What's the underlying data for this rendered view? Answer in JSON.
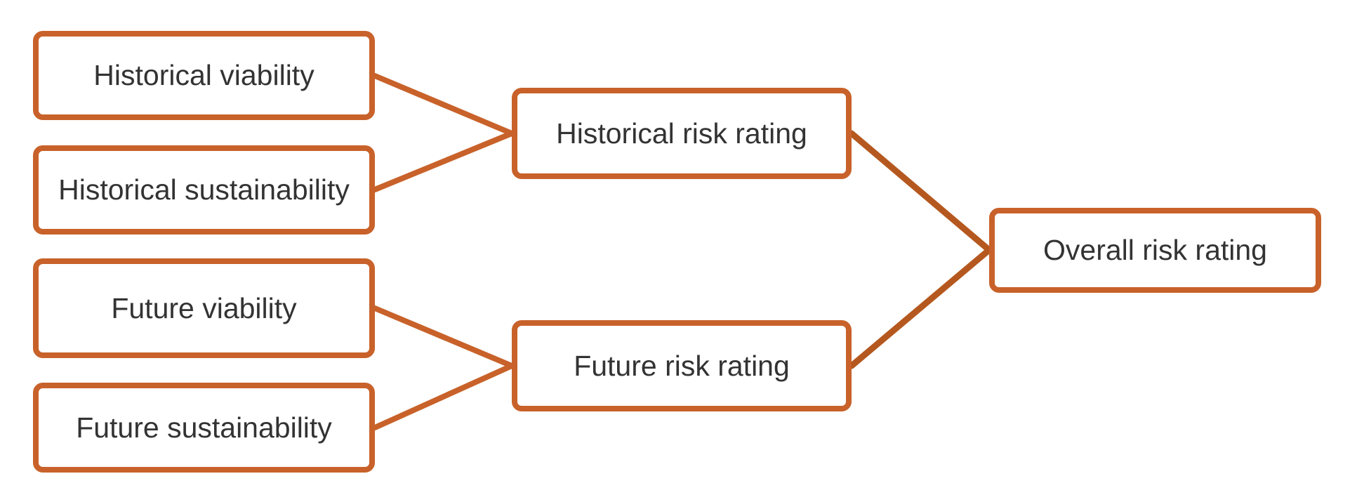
{
  "diagram": {
    "colors": {
      "accent": "#C8622A",
      "connector": "#B5581F",
      "text": "#333333"
    },
    "nodes": {
      "historical_viability": "Historical viability",
      "historical_sustainability": "Historical sustainability",
      "future_viability": "Future viability",
      "future_sustainability": "Future sustainability",
      "historical_risk_rating": "Historical risk rating",
      "future_risk_rating": "Future risk rating",
      "overall_risk_rating": "Overall risk rating"
    },
    "edges": [
      {
        "from": "historical_viability",
        "to": "historical_risk_rating"
      },
      {
        "from": "historical_sustainability",
        "to": "historical_risk_rating"
      },
      {
        "from": "future_viability",
        "to": "future_risk_rating"
      },
      {
        "from": "future_sustainability",
        "to": "future_risk_rating"
      },
      {
        "from": "historical_risk_rating",
        "to": "overall_risk_rating"
      },
      {
        "from": "future_risk_rating",
        "to": "overall_risk_rating"
      }
    ]
  }
}
